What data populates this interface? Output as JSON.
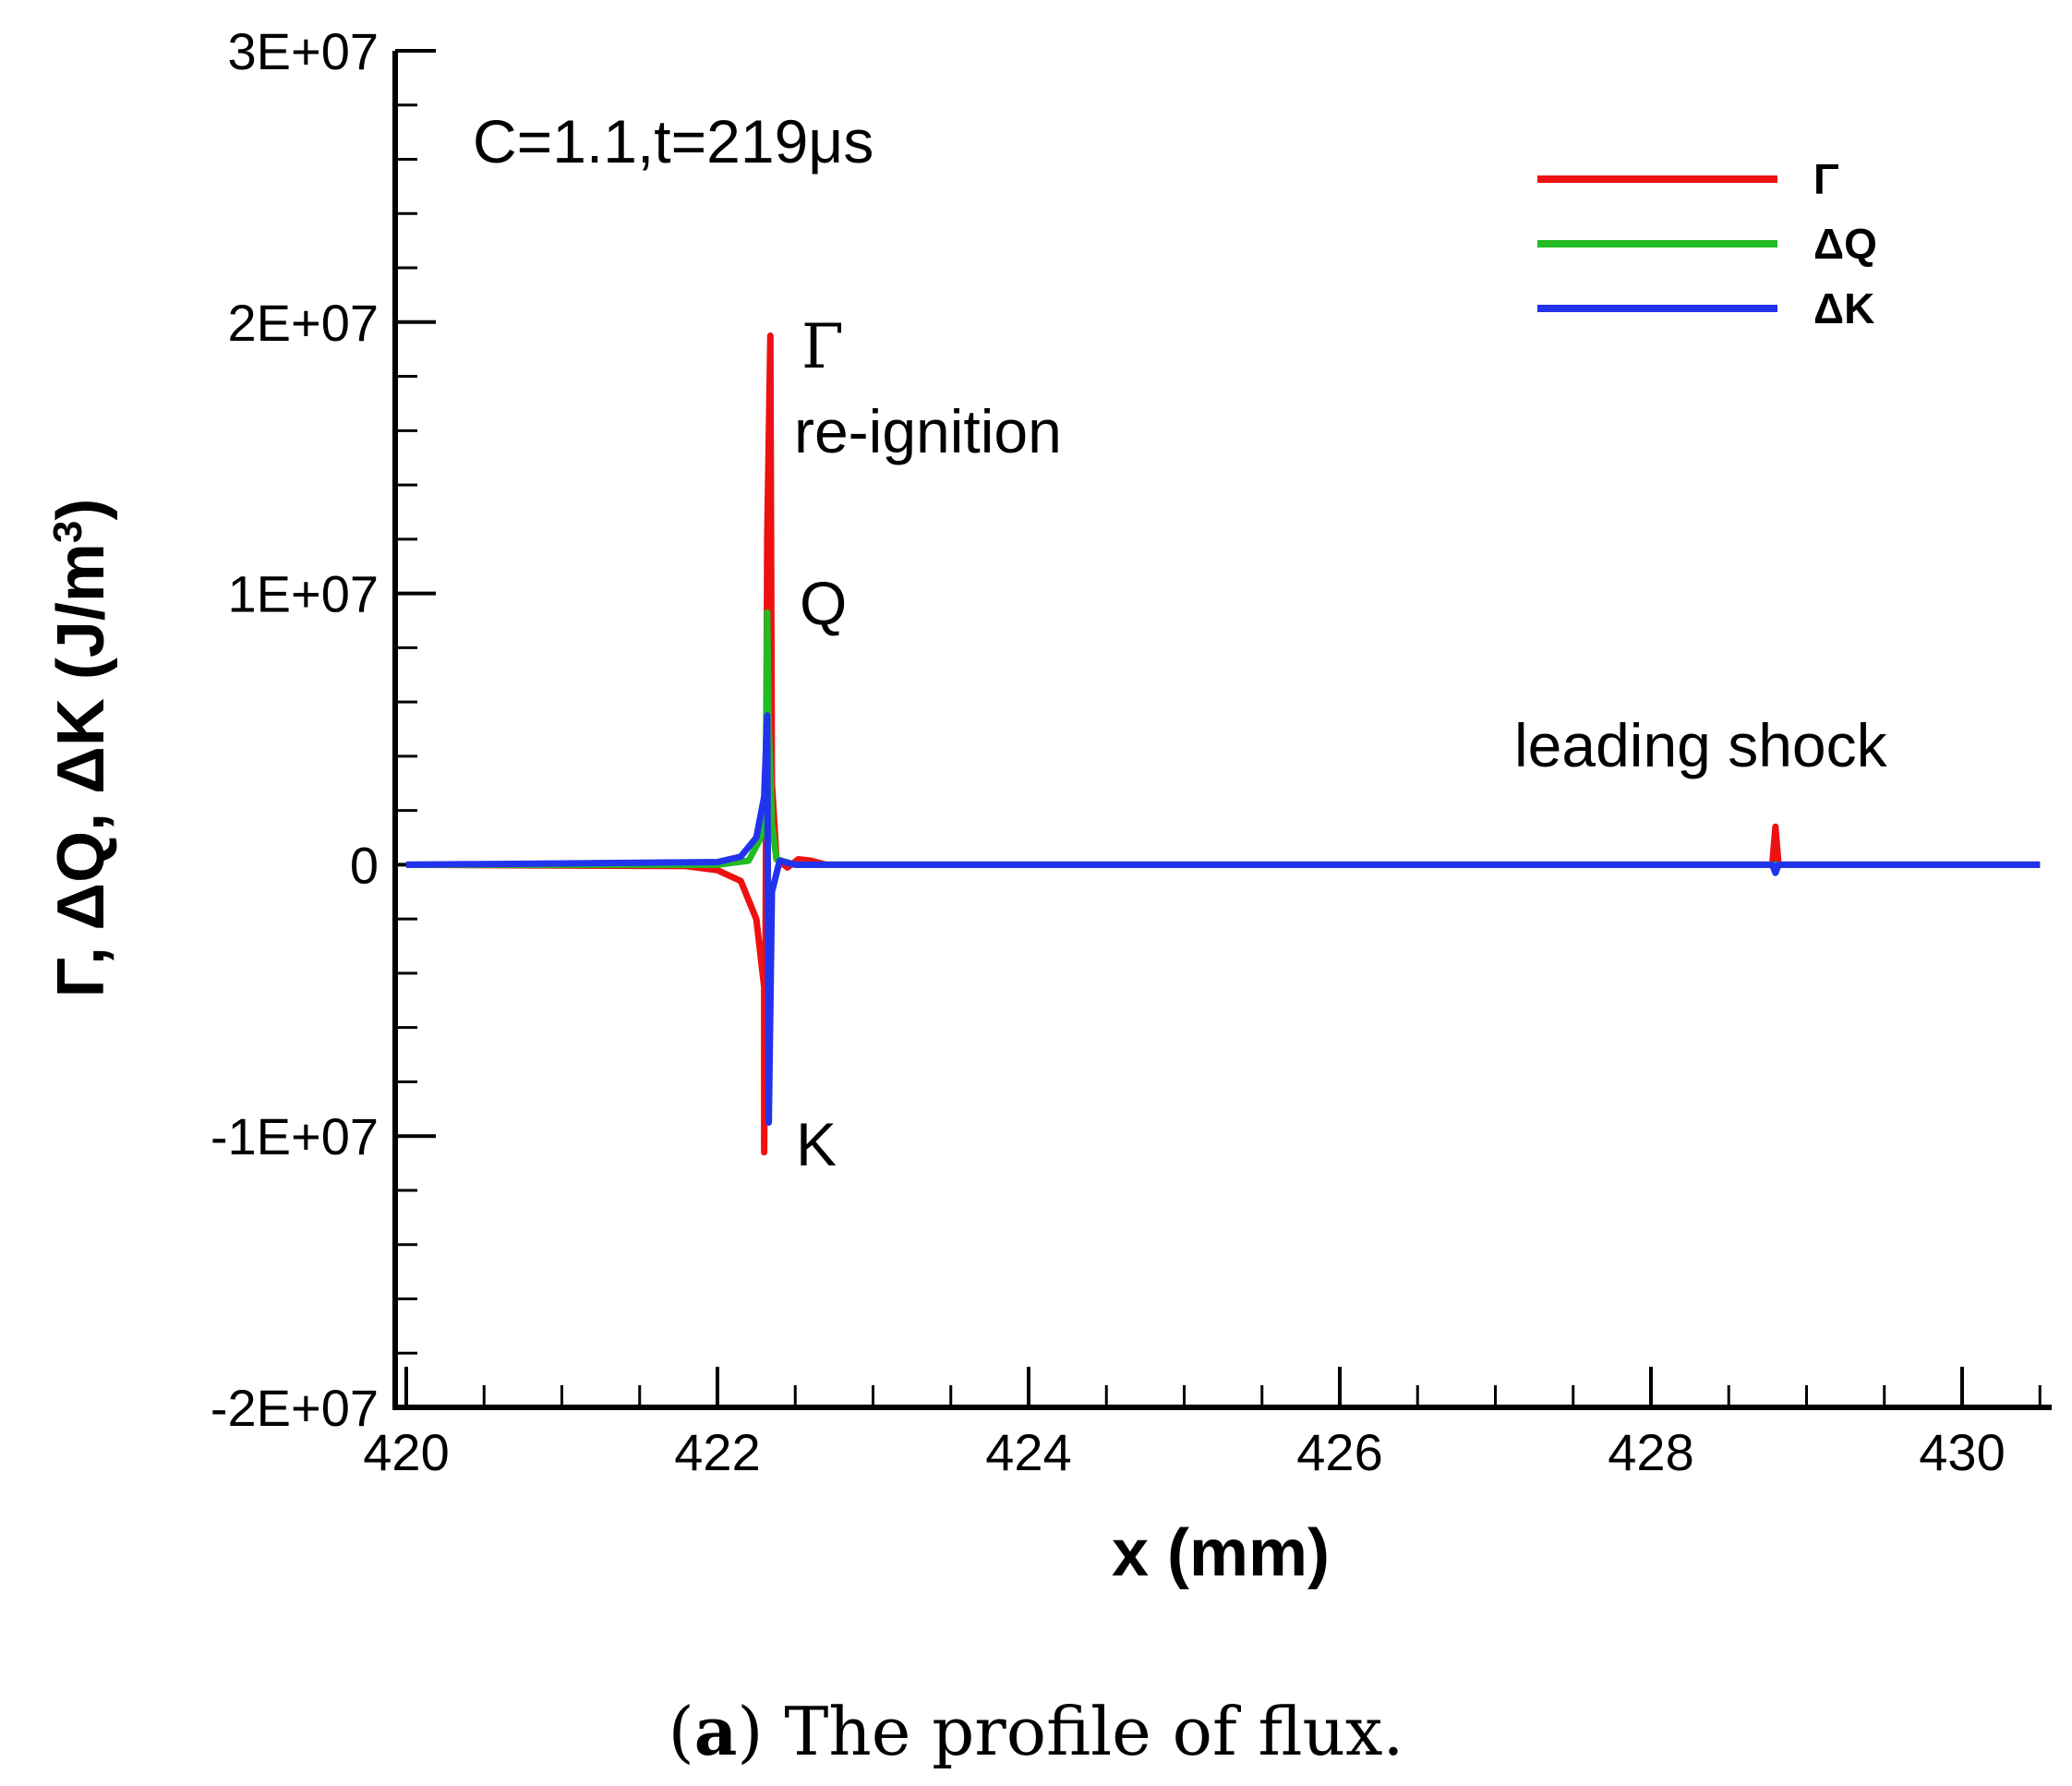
{
  "chart_data": {
    "type": "line",
    "xlabel": "x (mm)",
    "ylabel": "Γ, ΔQ, ΔK (J/m",
    "ylabel_sup": "3",
    "ylabel_close": ")",
    "xlim": [
      420,
      430.5
    ],
    "ylim": [
      -20000000,
      30000000
    ],
    "x_ticks": [
      420,
      422,
      424,
      426,
      428,
      430
    ],
    "x_tick_labels": [
      "420",
      "422",
      "424",
      "426",
      "428",
      "430"
    ],
    "y_ticks": [
      -20000000,
      -10000000,
      0,
      10000000,
      20000000,
      30000000
    ],
    "y_tick_labels": [
      "-2E+07",
      "-1E+07",
      "0",
      "1E+07",
      "2E+07",
      "3E+07"
    ],
    "legend_position": "top-right",
    "annotations": {
      "condition": "C=1.1,t=219μs",
      "gamma": "Γ",
      "reignition": "re-ignition",
      "q": "Q",
      "k": "K",
      "leading_shock": "leading shock"
    },
    "series": [
      {
        "name": "Γ",
        "color": "#ee1111",
        "points": [
          [
            420,
            0
          ],
          [
            421.8,
            -50000
          ],
          [
            422.0,
            -200000
          ],
          [
            422.15,
            -600000
          ],
          [
            422.25,
            -2000000
          ],
          [
            422.3,
            -4500000
          ],
          [
            422.3,
            -10600000
          ],
          [
            422.31,
            -2000000
          ],
          [
            422.32,
            12000000
          ],
          [
            422.34,
            19500000
          ],
          [
            422.35,
            3000000
          ],
          [
            422.38,
            200000
          ],
          [
            422.45,
            -100000
          ],
          [
            422.52,
            200000
          ],
          [
            422.6,
            150000
          ],
          [
            422.7,
            0
          ],
          [
            428.78,
            0
          ],
          [
            428.8,
            1400000
          ],
          [
            428.82,
            0
          ],
          [
            430.5,
            0
          ]
        ]
      },
      {
        "name": "ΔQ",
        "color": "#22bb22",
        "points": [
          [
            420,
            0
          ],
          [
            422.0,
            0
          ],
          [
            422.2,
            150000
          ],
          [
            422.28,
            1000000
          ],
          [
            422.31,
            3000000
          ],
          [
            422.32,
            9300000
          ],
          [
            422.33,
            5000000
          ],
          [
            422.35,
            1500000
          ],
          [
            422.38,
            200000
          ],
          [
            422.5,
            0
          ],
          [
            430.5,
            0
          ]
        ]
      },
      {
        "name": "ΔK",
        "color": "#2233ee",
        "points": [
          [
            420,
            0
          ],
          [
            422.0,
            100000
          ],
          [
            422.15,
            300000
          ],
          [
            422.25,
            1000000
          ],
          [
            422.3,
            2500000
          ],
          [
            422.32,
            5500000
          ],
          [
            422.33,
            -9500000
          ],
          [
            422.35,
            -1000000
          ],
          [
            422.4,
            150000
          ],
          [
            422.5,
            0
          ],
          [
            428.78,
            0
          ],
          [
            428.8,
            -300000
          ],
          [
            428.82,
            0
          ],
          [
            430.5,
            0
          ]
        ]
      }
    ]
  },
  "caption": {
    "label": "a",
    "text": " The profile of flux."
  }
}
